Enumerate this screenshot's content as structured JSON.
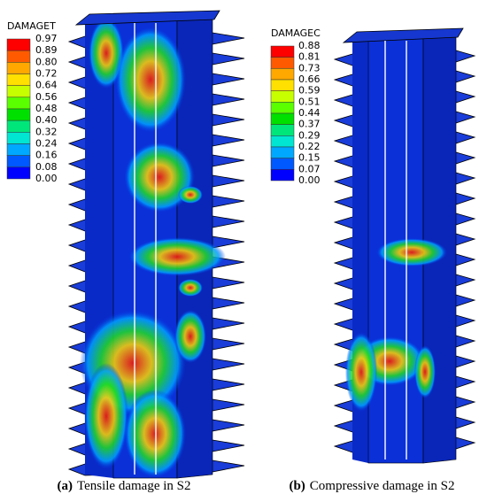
{
  "panels": [
    {
      "legend": {
        "title": "DAMAGET",
        "labels": [
          "0.97",
          "0.89",
          "0.80",
          "0.72",
          "0.64",
          "0.56",
          "0.48",
          "0.40",
          "0.32",
          "0.24",
          "0.16",
          "0.08",
          "0.00"
        ]
      },
      "caption": {
        "label": "(a)",
        "text": "Tensile damage in S2"
      }
    },
    {
      "legend": {
        "title": "DAMAGEC",
        "labels": [
          "0.88",
          "0.81",
          "0.73",
          "0.66",
          "0.59",
          "0.51",
          "0.44",
          "0.37",
          "0.29",
          "0.22",
          "0.15",
          "0.07",
          "0.00"
        ]
      },
      "caption": {
        "label": "(b)",
        "text": "Compressive damage in S2"
      }
    }
  ]
}
